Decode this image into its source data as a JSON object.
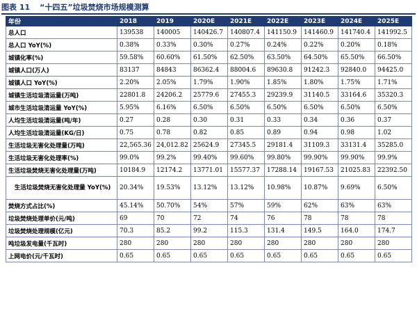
{
  "caption": {
    "number": "图表 11",
    "title": "“十四五”垃圾焚烧市场规模测算"
  },
  "header": [
    "年份",
    "2018",
    "2019",
    "2020E",
    "2021E",
    "2022E",
    "2023E",
    "2024E",
    "2025E"
  ],
  "rows": [
    {
      "label": "总人口",
      "values": [
        "139538",
        "140005",
        "140426.7",
        "140807.4",
        "141150.9",
        "141460.9",
        "141740.4",
        "141992.5"
      ]
    },
    {
      "label": "总人口 YoY(%)",
      "values": [
        "0.38%",
        "0.33%",
        "0.30%",
        "0.27%",
        "0.24%",
        "0.22%",
        "0.20%",
        "0.18%"
      ]
    },
    {
      "label": "城镇化率(%)",
      "values": [
        "59.58%",
        "60.60%",
        "61.50%",
        "62.50%",
        "63.50%",
        "64.50%",
        "65.50%",
        "66.50%"
      ]
    },
    {
      "label": "城镇人口(万人)",
      "values": [
        "83137",
        "84843",
        "86362.4",
        "88004.6",
        "89630.8",
        "91242.3",
        "92840.0",
        "94425.0"
      ]
    },
    {
      "label": "城镇人口 YoY(%)",
      "values": [
        "2.20%",
        "2.05%",
        "1.79%",
        "1.90%",
        "1.85%",
        "1.80%",
        "1.75%",
        "1.71%"
      ]
    },
    {
      "label": "城镇生活垃圾清运量(万吨)",
      "values": [
        "22801.8",
        "24206.2",
        "25779.6",
        "27455.3",
        "29239.9",
        "31140.5",
        "33164.6",
        "35320.3"
      ]
    },
    {
      "label": "城市生活垃圾清运量 YoY(%)",
      "values": [
        "5.95%",
        "6.16%",
        "6.50%",
        "6.50%",
        "6.50%",
        "6.50%",
        "6.50%",
        "6.50%"
      ]
    },
    {
      "label": "人均生活垃圾清运量(吨/年)",
      "values": [
        "0.27",
        "0.28",
        "0.30",
        "0.31",
        "0.33",
        "0.34",
        "0.36",
        "0.37"
      ]
    },
    {
      "label": "人均生活垃圾清运量(KG/日)",
      "values": [
        "0.75",
        "0.78",
        "0.82",
        "0.85",
        "0.89",
        "0.94",
        "0.98",
        "1.02"
      ]
    },
    {
      "label": "生活垃圾无害化处理量(万吨)",
      "values": [
        "22,565.36",
        "24,012.82",
        "25624.9",
        "27345.5",
        "29181.4",
        "31109.3",
        "33131.4",
        "35285.0"
      ]
    },
    {
      "label": "生活垃圾无害化处理率(%)",
      "values": [
        "99.0%",
        "99.2%",
        "99.40%",
        "99.60%",
        "99.80%",
        "99.90%",
        "99.90%",
        "99.9%"
      ]
    },
    {
      "label": "生活垃圾焚烧无害化处理量(万吨)",
      "values": [
        "10184.9",
        "12174.2",
        "13771.01",
        "15577.37",
        "17288.14",
        "19167.53",
        "21025.83",
        "22392.50"
      ]
    },
    {
      "label": "生活垃圾焚烧无害化处理量 YoY(%)",
      "tall": true,
      "values": [
        "20.34%",
        "19.53%",
        "13.12%",
        "13.12%",
        "10.98%",
        "10.87%",
        "9.69%",
        "6.50%"
      ]
    },
    {
      "label": "焚烧方式占比(%)",
      "values": [
        "45.14%",
        "50.70%",
        "54%",
        "57%",
        "59%",
        "62%",
        "63%",
        "63%"
      ]
    },
    {
      "label": "垃圾焚烧处理单价(元/吨)",
      "values": [
        "69",
        "70",
        "72",
        "74",
        "76",
        "78",
        "78",
        "78"
      ]
    },
    {
      "label": "垃圾焚烧处理规模(亿元)",
      "values": [
        "70.3",
        "85.2",
        "99.2",
        "115.3",
        "131.4",
        "149.5",
        "164.0",
        "174.7"
      ]
    },
    {
      "label": "吨垃圾发电量(千瓦时)",
      "values": [
        "280",
        "280",
        "280",
        "280",
        "280",
        "280",
        "280",
        "280"
      ]
    },
    {
      "label": "上网电价(元/千瓦时)",
      "values": [
        "0.65",
        "0.65",
        "0.65",
        "0.65",
        "0.65",
        "0.65",
        "0.65",
        "0.65"
      ]
    }
  ]
}
